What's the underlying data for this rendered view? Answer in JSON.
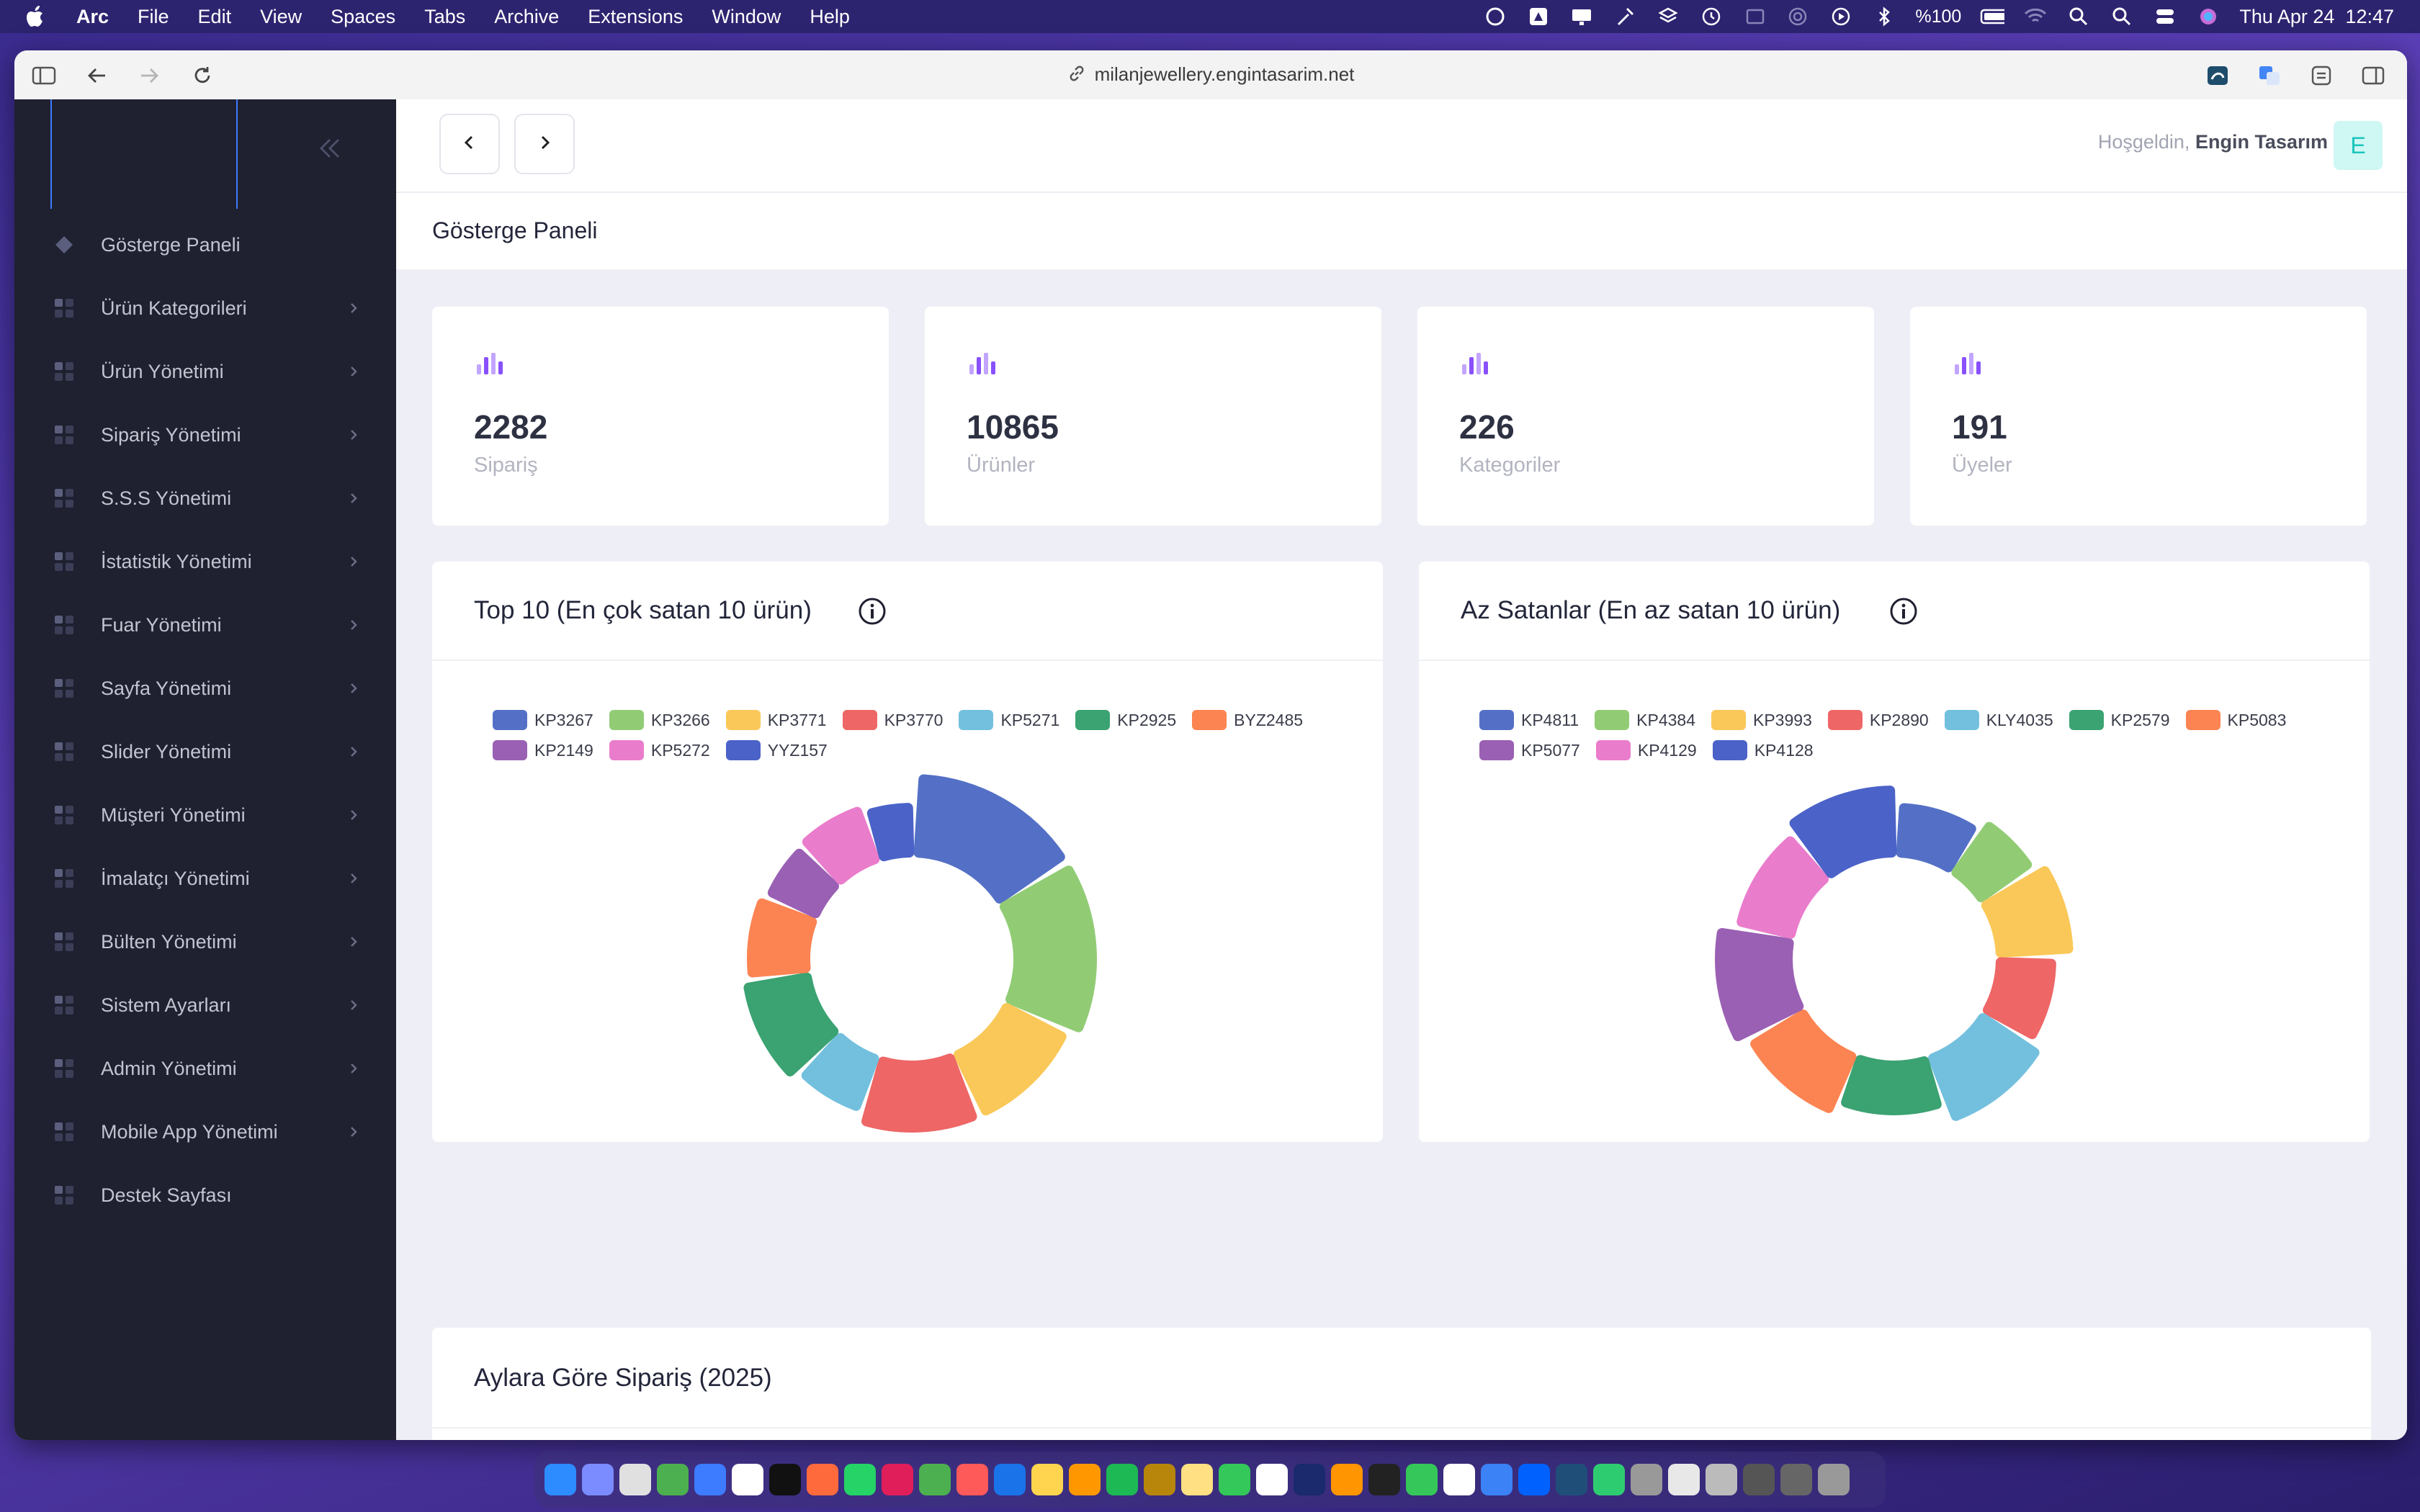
{
  "menubar": {
    "app_name": "Arc",
    "items": [
      "File",
      "Edit",
      "View",
      "Spaces",
      "Tabs",
      "Archive",
      "Extensions",
      "Window",
      "Help"
    ],
    "battery": "%100",
    "datetime": "Thu Apr 24  12:47"
  },
  "browser": {
    "url": "milanjewellery.engintasarim.net"
  },
  "sidebar": {
    "items": [
      {
        "label": "Gösterge Paneli",
        "has_chevron": false,
        "icon": "diamond-icon"
      },
      {
        "label": "Ürün Kategorileri",
        "has_chevron": true,
        "icon": "grid-icon"
      },
      {
        "label": "Ürün Yönetimi",
        "has_chevron": true,
        "icon": "grid-icon"
      },
      {
        "label": "Sipariş Yönetimi",
        "has_chevron": true,
        "icon": "grid-icon"
      },
      {
        "label": "S.S.S Yönetimi",
        "has_chevron": true,
        "icon": "grid-icon"
      },
      {
        "label": "İstatistik Yönetimi",
        "has_chevron": true,
        "icon": "grid-icon"
      },
      {
        "label": "Fuar Yönetimi",
        "has_chevron": true,
        "icon": "grid-icon"
      },
      {
        "label": "Sayfa Yönetimi",
        "has_chevron": true,
        "icon": "grid-icon"
      },
      {
        "label": "Slider Yönetimi",
        "has_chevron": true,
        "icon": "grid-icon"
      },
      {
        "label": "Müşteri Yönetimi",
        "has_chevron": true,
        "icon": "grid-icon"
      },
      {
        "label": "İmalatçı Yönetimi",
        "has_chevron": true,
        "icon": "grid-icon"
      },
      {
        "label": "Bülten Yönetimi",
        "has_chevron": true,
        "icon": "grid-icon"
      },
      {
        "label": "Sistem Ayarları",
        "has_chevron": true,
        "icon": "grid-icon"
      },
      {
        "label": "Admin Yönetimi",
        "has_chevron": true,
        "icon": "grid-icon"
      },
      {
        "label": "Mobile App Yönetimi",
        "has_chevron": true,
        "icon": "grid-icon"
      },
      {
        "label": "Destek Sayfası",
        "has_chevron": false,
        "icon": "grid-icon"
      }
    ]
  },
  "header": {
    "welcome_prefix": "Hoşgeldin,",
    "user_name": "Engin Tasarım",
    "avatar_letter": "E"
  },
  "page_title": "Gösterge Paneli",
  "stats": [
    {
      "value": "2282",
      "label": "Sipariş"
    },
    {
      "value": "10865",
      "label": "Ürünler"
    },
    {
      "value": "226",
      "label": "Kategoriler"
    },
    {
      "value": "191",
      "label": "Üyeler"
    }
  ],
  "colors": {
    "palette": [
      "#5470c6",
      "#91cc75",
      "#fac858",
      "#ee6666",
      "#73c0de",
      "#3ba272",
      "#fc8452",
      "#9a60b4",
      "#ea7ccc",
      "#4b62c8"
    ],
    "accent_purple": "#8950fc"
  },
  "chart_data": [
    {
      "type": "pie",
      "title": "Top 10 (En çok satan 10 ürün)",
      "legend_position": "top",
      "categories": [
        "KP3267",
        "KP3266",
        "KP3771",
        "KP3770",
        "KP5271",
        "KP2925",
        "BYZ2485",
        "KP2149",
        "KP5272",
        "YYZ157"
      ],
      "values": [
        15,
        15,
        11,
        11,
        7,
        10,
        8,
        6,
        7,
        5
      ]
    },
    {
      "type": "pie",
      "title": "Az Satanlar (En az satan 10 ürün)",
      "legend_position": "top",
      "categories": [
        "KP4811",
        "KP4384",
        "KP3993",
        "KP2890",
        "KLY4035",
        "KP2579",
        "KP5083",
        "KP5077",
        "KP4129",
        "KP4128"
      ],
      "values": [
        8,
        6,
        8,
        8,
        10,
        10,
        10,
        10,
        10,
        10
      ]
    }
  ],
  "bottom_card": {
    "title": "Aylara Göre Sipariş (2025)"
  }
}
